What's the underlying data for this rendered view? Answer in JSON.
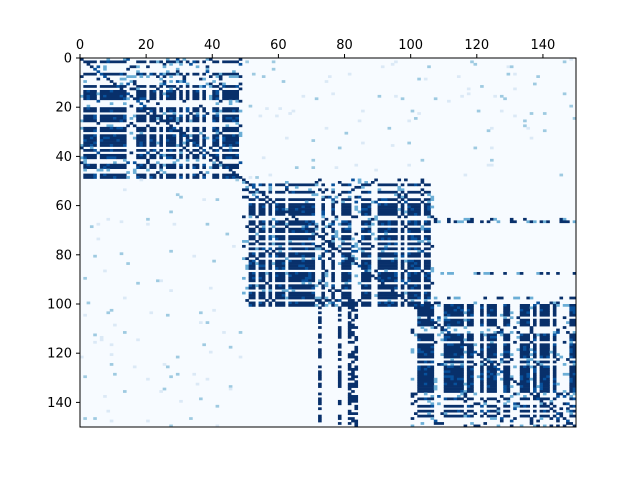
{
  "chart_data": {
    "type": "heatmap",
    "title": "",
    "xlabel": "",
    "ylabel": "",
    "n_rows": 150,
    "n_cols": 150,
    "xlim": [
      0,
      150
    ],
    "ylim": [
      150,
      0
    ],
    "x_axis_position": "top",
    "x_ticks": [
      0,
      20,
      40,
      60,
      80,
      100,
      120,
      140
    ],
    "y_ticks": [
      0,
      20,
      40,
      60,
      80,
      100,
      120,
      140
    ],
    "grid": false,
    "legend": "none",
    "colormap": "Blues",
    "colors": {
      "low": "#f7fbff",
      "faint": "#dbe9f6",
      "mid": "#9ecae1",
      "light_mid": "#6baed6",
      "high": "#08306b",
      "high_alt": "#08519c"
    },
    "blocks": [
      {
        "rows": [
          0,
          49
        ],
        "cols": [
          0,
          49
        ],
        "pattern": "dense-checker",
        "level": "high"
      },
      {
        "rows": [
          49,
          101
        ],
        "cols": [
          49,
          107
        ],
        "pattern": "dense-checker",
        "level": "high"
      },
      {
        "rows": [
          99,
          150
        ],
        "cols": [
          100,
          150
        ],
        "pattern": "dense-checker",
        "level": "high"
      }
    ],
    "cross_blocks": [
      {
        "rows": [
          98,
          150
        ],
        "cols": [
          68,
          84
        ],
        "pattern": "sparse-columns",
        "level": "high"
      },
      {
        "rows": [
          49,
          101
        ],
        "cols": [
          107,
          150
        ],
        "pattern": "sparse-rows",
        "level": "light_mid"
      },
      {
        "rows": [
          0,
          49
        ],
        "cols": [
          49,
          150
        ],
        "pattern": "very-sparse",
        "level": "mid"
      },
      {
        "rows": [
          49,
          150
        ],
        "cols": [
          0,
          49
        ],
        "pattern": "very-sparse",
        "level": "mid"
      }
    ]
  }
}
